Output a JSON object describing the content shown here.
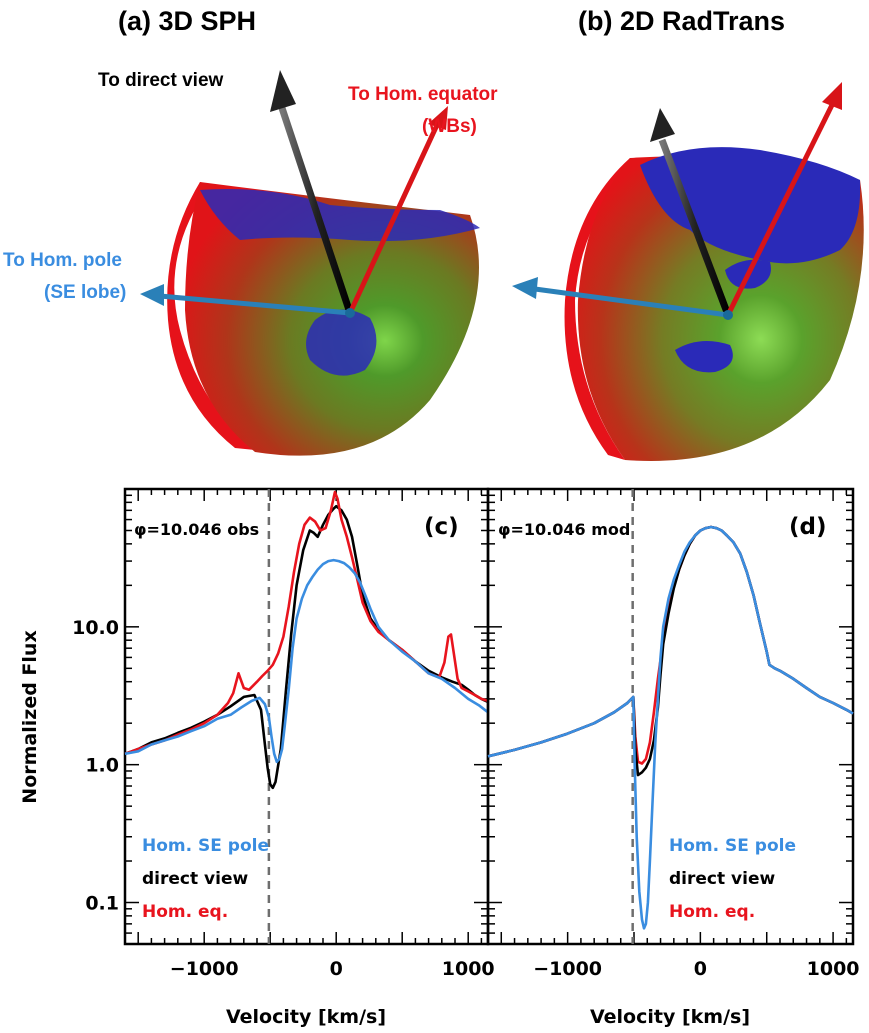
{
  "colors": {
    "black": "#000000",
    "red": "#e8141e",
    "blue": "#3a8de0",
    "dashed": "#6e6e6e",
    "shell_red": "#e6121a",
    "shell_green": "#3c8a22",
    "blob_blue": "#2a2ab8"
  },
  "top": {
    "left_title": "(a) 3D SPH",
    "right_title": "(b) 2D RadTrans",
    "arrow_labels": {
      "direct": "To direct view",
      "equator_1": "To Hom. equator",
      "equator_2": "(WBs)",
      "pole_1": "To Hom. pole",
      "pole_2": "(SE lobe)"
    }
  },
  "chart_data": [
    {
      "type": "line",
      "panel_label": "(c)",
      "annotation": "φ=10.046 obs",
      "xlabel": "Velocity [km/s]",
      "ylabel": "Normalized Flux",
      "xlim": [
        -1600,
        1150
      ],
      "ylim": [
        0.05,
        100
      ],
      "yscale": "log",
      "xticks": [
        -1000,
        0,
        1000
      ],
      "xtick_labels": [
        "−1000",
        "0",
        "1000"
      ],
      "yticks": [
        0.1,
        1.0,
        10.0
      ],
      "ytick_labels": [
        "0.1",
        "1.0",
        "10.0"
      ],
      "vline": -510,
      "legend": [
        "Hom. SE pole",
        "direct view",
        "Hom. eq."
      ],
      "series": [
        {
          "name": "direct view",
          "color": "#000000",
          "x": [
            -1600,
            -1500,
            -1400,
            -1300,
            -1200,
            -1100,
            -1000,
            -900,
            -800,
            -700,
            -620,
            -570,
            -540,
            -520,
            -500,
            -480,
            -460,
            -420,
            -380,
            -340,
            -300,
            -250,
            -200,
            -170,
            -140,
            -100,
            -60,
            -20,
            0,
            40,
            80,
            120,
            160,
            200,
            260,
            320,
            400,
            500,
            600,
            700,
            800,
            880,
            950,
            1000,
            1050,
            1100,
            1150
          ],
          "y": [
            1.2,
            1.3,
            1.45,
            1.55,
            1.7,
            1.85,
            2.05,
            2.3,
            2.65,
            3.1,
            3.2,
            2.5,
            1.4,
            0.95,
            0.72,
            0.68,
            0.75,
            1.3,
            3.5,
            9,
            20,
            36,
            50,
            48,
            45,
            55,
            65,
            72,
            75,
            70,
            60,
            45,
            28,
            17,
            11.5,
            9.5,
            8,
            6.8,
            5.6,
            4.8,
            4.3,
            4.0,
            3.8,
            3.5,
            3.2,
            3.0,
            2.85
          ]
        },
        {
          "name": "Hom. eq.",
          "color": "#e8141e",
          "x": [
            -1600,
            -1500,
            -1400,
            -1300,
            -1200,
            -1100,
            -1000,
            -900,
            -820,
            -780,
            -740,
            -700,
            -660,
            -600,
            -560,
            -520,
            -480,
            -440,
            -400,
            -360,
            -320,
            -280,
            -240,
            -200,
            -160,
            -120,
            -80,
            -40,
            -10,
            10,
            40,
            80,
            120,
            160,
            200,
            260,
            320,
            400,
            500,
            600,
            700,
            780,
            820,
            850,
            870,
            890,
            920,
            950,
            1000,
            1050,
            1100,
            1150
          ],
          "y": [
            1.2,
            1.3,
            1.4,
            1.5,
            1.65,
            1.8,
            2.0,
            2.3,
            2.8,
            3.3,
            4.6,
            3.6,
            3.5,
            4.0,
            4.4,
            4.8,
            5.3,
            6.4,
            8.5,
            14,
            25,
            40,
            55,
            62,
            58,
            50,
            52,
            70,
            95,
            85,
            60,
            45,
            32,
            22,
            15,
            11,
            9.2,
            8,
            6.8,
            5.6,
            4.6,
            4.3,
            5.5,
            8.5,
            8.8,
            6.5,
            4.2,
            3.6,
            3.4,
            3.2,
            3.0,
            2.9
          ]
        },
        {
          "name": "Hom. SE pole",
          "color": "#3a8de0",
          "x": [
            -1600,
            -1500,
            -1400,
            -1300,
            -1200,
            -1100,
            -1000,
            -900,
            -800,
            -720,
            -640,
            -580,
            -540,
            -510,
            -490,
            -470,
            -450,
            -430,
            -410,
            -390,
            -360,
            -330,
            -300,
            -260,
            -220,
            -180,
            -140,
            -100,
            -60,
            -20,
            20,
            60,
            100,
            140,
            180,
            220,
            260,
            320,
            400,
            500,
            600,
            700,
            800,
            900,
            1000,
            1080,
            1150
          ],
          "y": [
            1.2,
            1.25,
            1.4,
            1.5,
            1.6,
            1.75,
            1.9,
            2.15,
            2.3,
            2.6,
            2.9,
            3.05,
            2.75,
            2.2,
            1.6,
            1.2,
            1.05,
            1.1,
            1.3,
            1.9,
            3.5,
            7,
            11.5,
            16,
            20,
            23,
            26,
            28.5,
            30,
            30.5,
            30,
            29,
            27,
            24.5,
            21,
            17,
            13.5,
            10,
            8,
            6.6,
            5.6,
            4.6,
            4.2,
            3.6,
            3.0,
            2.7,
            2.4
          ]
        }
      ]
    },
    {
      "type": "line",
      "panel_label": "(d)",
      "annotation": "φ=10.046 mod",
      "xlabel": "Velocity [km/s]",
      "ylabel": "",
      "xlim": [
        -1600,
        1150
      ],
      "ylim": [
        0.05,
        100
      ],
      "yscale": "log",
      "xticks": [
        -1000,
        0,
        1000
      ],
      "xtick_labels": [
        "−1000",
        "0",
        "1000"
      ],
      "vline": -510,
      "legend": [
        "Hom. SE pole",
        "direct view",
        "Hom. eq."
      ],
      "series": [
        {
          "name": "Hom. eq.",
          "color": "#e8141e",
          "x": [
            -1600,
            -1400,
            -1200,
            -1000,
            -800,
            -650,
            -550,
            -505,
            -490,
            -470,
            -440,
            -410,
            -380,
            -350,
            -320,
            -280,
            -240,
            -200,
            -160,
            -120,
            -80,
            -40,
            0,
            40,
            80,
            120,
            160,
            200,
            250,
            300,
            350,
            400,
            450,
            500,
            520,
            560,
            600,
            700,
            800,
            900,
            1000,
            1100,
            1150
          ],
          "y": [
            1.15,
            1.28,
            1.45,
            1.68,
            2.0,
            2.4,
            2.8,
            3.1,
            1.6,
            1.05,
            1.02,
            1.1,
            1.45,
            2.4,
            4.2,
            8,
            13.5,
            19.5,
            26,
            33,
            40,
            46,
            50,
            52,
            53,
            52,
            50,
            46,
            41,
            34,
            25,
            17,
            10.5,
            6.6,
            5.3,
            5.0,
            4.8,
            4.2,
            3.6,
            3.1,
            2.8,
            2.5,
            2.35
          ]
        },
        {
          "name": "direct view",
          "color": "#000000",
          "x": [
            -1600,
            -1400,
            -1200,
            -1000,
            -800,
            -650,
            -550,
            -505,
            -490,
            -470,
            -440,
            -410,
            -380,
            -350,
            -320,
            -300,
            -280,
            -240,
            -200,
            -160,
            -120,
            -80,
            -40,
            0,
            40,
            80,
            120,
            160,
            200,
            250,
            300,
            350,
            400,
            450,
            500,
            520,
            560,
            600,
            700,
            800,
            900,
            1000,
            1100,
            1150
          ],
          "y": [
            1.15,
            1.28,
            1.45,
            1.68,
            2.0,
            2.4,
            2.8,
            3.1,
            1.3,
            0.84,
            0.88,
            0.95,
            1.1,
            1.5,
            2.6,
            4.5,
            7.5,
            12.5,
            19,
            26,
            33,
            40,
            46,
            50,
            52,
            53,
            52,
            50,
            46,
            41,
            34,
            25,
            17,
            10.5,
            6.6,
            5.3,
            5.0,
            4.8,
            4.2,
            3.6,
            3.1,
            2.8,
            2.5,
            2.35
          ]
        },
        {
          "name": "Hom. SE pole",
          "color": "#3a8de0",
          "x": [
            -1600,
            -1400,
            -1200,
            -1000,
            -800,
            -650,
            -550,
            -505,
            -495,
            -480,
            -460,
            -440,
            -425,
            -410,
            -395,
            -380,
            -360,
            -340,
            -320,
            -300,
            -280,
            -240,
            -200,
            -160,
            -120,
            -80,
            -40,
            0,
            40,
            80,
            120,
            160,
            200,
            250,
            300,
            350,
            400,
            450,
            500,
            520,
            560,
            600,
            700,
            800,
            900,
            1000,
            1100,
            1150
          ],
          "y": [
            1.15,
            1.28,
            1.45,
            1.68,
            2.0,
            2.4,
            2.8,
            3.1,
            1.0,
            0.3,
            0.12,
            0.075,
            0.065,
            0.07,
            0.1,
            0.2,
            0.55,
            1.4,
            3.0,
            6,
            10,
            16,
            22,
            28,
            35,
            41,
            46,
            50,
            52,
            53,
            52,
            50,
            46,
            41,
            34,
            25,
            17,
            10.5,
            6.6,
            5.3,
            5.0,
            4.8,
            4.2,
            3.6,
            3.1,
            2.8,
            2.5,
            2.35
          ]
        }
      ]
    }
  ]
}
